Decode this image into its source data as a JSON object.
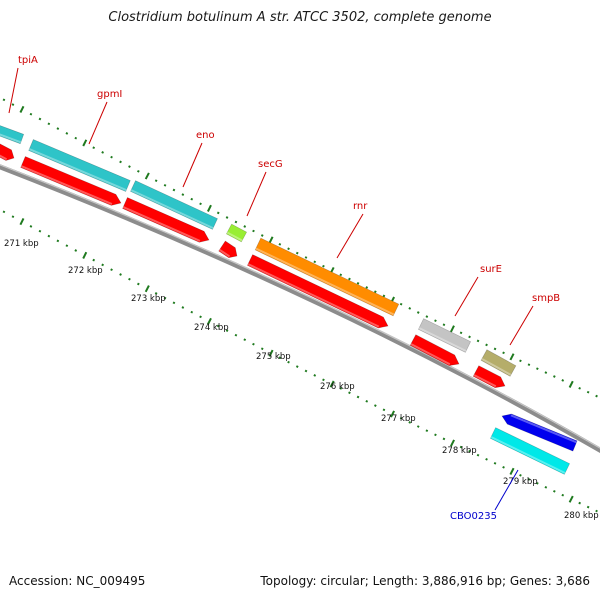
{
  "title": "Clostridium botulinum A str. ATCC 3502, complete genome",
  "footer": {
    "accession": "Accession: NC_009495",
    "summary": "Topology: circular; Length: 3,886,916 bp; Genes: 3,686"
  },
  "colors": {
    "backbone": "#8c8c8c",
    "ticks": "#1f7a1f",
    "cds": "#ff0000",
    "feature_label": "#cc0000",
    "locus_label": "#0000cc"
  },
  "scale_labels": [
    "271 kbp",
    "272 kbp",
    "273 kbp",
    "274 kbp",
    "275 kbp",
    "276 kbp",
    "277 kbp",
    "278 kbp",
    "279 kbp",
    "280 kbp"
  ],
  "genes": [
    {
      "name": "tpiA",
      "color": "#2ec4c8"
    },
    {
      "name": "gpmI",
      "color": "#2ec4c8"
    },
    {
      "name": "eno",
      "color": "#2ec4c8"
    },
    {
      "name": "secG",
      "color": "#99ee33"
    },
    {
      "name": "rnr",
      "color": "#ff8c00"
    },
    {
      "name": "surE",
      "color": "#c4c4c4"
    },
    {
      "name": "smpB",
      "color": "#b5ad6a"
    },
    {
      "name": "CBO0235",
      "color": "#00e8e8"
    }
  ],
  "reverse_feature_color": "#0000ee"
}
